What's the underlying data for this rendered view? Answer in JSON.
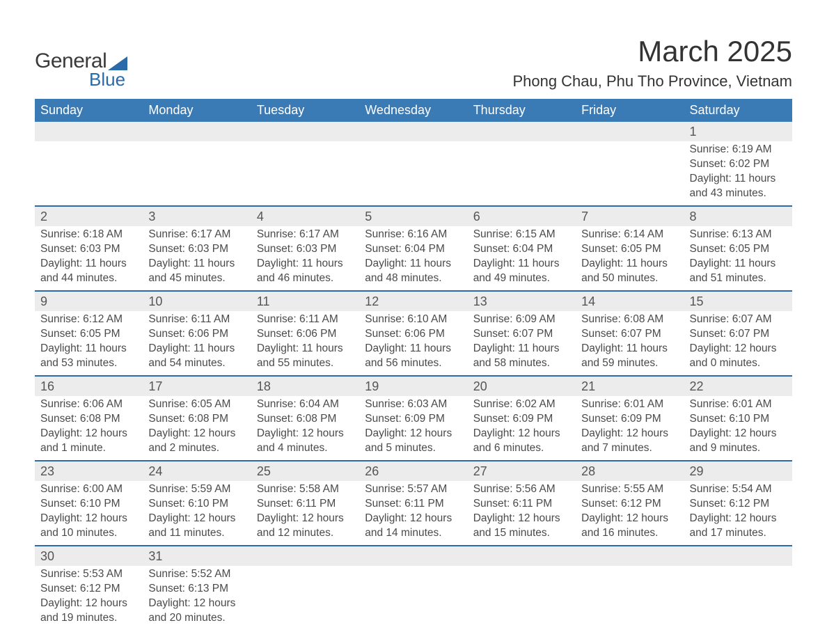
{
  "brand": {
    "general": "General",
    "blue": "Blue"
  },
  "title": "March 2025",
  "location": "Phong Chau, Phu Tho Province, Vietnam",
  "colors": {
    "header_bg": "#3a7ab5",
    "week_divider": "#2b6aa8",
    "daynum_bg": "#ececec",
    "text": "#4a4a4a",
    "title_text": "#333333",
    "logo_blue": "#2b6aa8"
  },
  "weekdays": [
    "Sunday",
    "Monday",
    "Tuesday",
    "Wednesday",
    "Thursday",
    "Friday",
    "Saturday"
  ],
  "weeks": [
    [
      null,
      null,
      null,
      null,
      null,
      null,
      {
        "d": "1",
        "sr": "Sunrise: 6:19 AM",
        "ss": "Sunset: 6:02 PM",
        "dl1": "Daylight: 11 hours",
        "dl2": "and 43 minutes."
      }
    ],
    [
      {
        "d": "2",
        "sr": "Sunrise: 6:18 AM",
        "ss": "Sunset: 6:03 PM",
        "dl1": "Daylight: 11 hours",
        "dl2": "and 44 minutes."
      },
      {
        "d": "3",
        "sr": "Sunrise: 6:17 AM",
        "ss": "Sunset: 6:03 PM",
        "dl1": "Daylight: 11 hours",
        "dl2": "and 45 minutes."
      },
      {
        "d": "4",
        "sr": "Sunrise: 6:17 AM",
        "ss": "Sunset: 6:03 PM",
        "dl1": "Daylight: 11 hours",
        "dl2": "and 46 minutes."
      },
      {
        "d": "5",
        "sr": "Sunrise: 6:16 AM",
        "ss": "Sunset: 6:04 PM",
        "dl1": "Daylight: 11 hours",
        "dl2": "and 48 minutes."
      },
      {
        "d": "6",
        "sr": "Sunrise: 6:15 AM",
        "ss": "Sunset: 6:04 PM",
        "dl1": "Daylight: 11 hours",
        "dl2": "and 49 minutes."
      },
      {
        "d": "7",
        "sr": "Sunrise: 6:14 AM",
        "ss": "Sunset: 6:05 PM",
        "dl1": "Daylight: 11 hours",
        "dl2": "and 50 minutes."
      },
      {
        "d": "8",
        "sr": "Sunrise: 6:13 AM",
        "ss": "Sunset: 6:05 PM",
        "dl1": "Daylight: 11 hours",
        "dl2": "and 51 minutes."
      }
    ],
    [
      {
        "d": "9",
        "sr": "Sunrise: 6:12 AM",
        "ss": "Sunset: 6:05 PM",
        "dl1": "Daylight: 11 hours",
        "dl2": "and 53 minutes."
      },
      {
        "d": "10",
        "sr": "Sunrise: 6:11 AM",
        "ss": "Sunset: 6:06 PM",
        "dl1": "Daylight: 11 hours",
        "dl2": "and 54 minutes."
      },
      {
        "d": "11",
        "sr": "Sunrise: 6:11 AM",
        "ss": "Sunset: 6:06 PM",
        "dl1": "Daylight: 11 hours",
        "dl2": "and 55 minutes."
      },
      {
        "d": "12",
        "sr": "Sunrise: 6:10 AM",
        "ss": "Sunset: 6:06 PM",
        "dl1": "Daylight: 11 hours",
        "dl2": "and 56 minutes."
      },
      {
        "d": "13",
        "sr": "Sunrise: 6:09 AM",
        "ss": "Sunset: 6:07 PM",
        "dl1": "Daylight: 11 hours",
        "dl2": "and 58 minutes."
      },
      {
        "d": "14",
        "sr": "Sunrise: 6:08 AM",
        "ss": "Sunset: 6:07 PM",
        "dl1": "Daylight: 11 hours",
        "dl2": "and 59 minutes."
      },
      {
        "d": "15",
        "sr": "Sunrise: 6:07 AM",
        "ss": "Sunset: 6:07 PM",
        "dl1": "Daylight: 12 hours",
        "dl2": "and 0 minutes."
      }
    ],
    [
      {
        "d": "16",
        "sr": "Sunrise: 6:06 AM",
        "ss": "Sunset: 6:08 PM",
        "dl1": "Daylight: 12 hours",
        "dl2": "and 1 minute."
      },
      {
        "d": "17",
        "sr": "Sunrise: 6:05 AM",
        "ss": "Sunset: 6:08 PM",
        "dl1": "Daylight: 12 hours",
        "dl2": "and 2 minutes."
      },
      {
        "d": "18",
        "sr": "Sunrise: 6:04 AM",
        "ss": "Sunset: 6:08 PM",
        "dl1": "Daylight: 12 hours",
        "dl2": "and 4 minutes."
      },
      {
        "d": "19",
        "sr": "Sunrise: 6:03 AM",
        "ss": "Sunset: 6:09 PM",
        "dl1": "Daylight: 12 hours",
        "dl2": "and 5 minutes."
      },
      {
        "d": "20",
        "sr": "Sunrise: 6:02 AM",
        "ss": "Sunset: 6:09 PM",
        "dl1": "Daylight: 12 hours",
        "dl2": "and 6 minutes."
      },
      {
        "d": "21",
        "sr": "Sunrise: 6:01 AM",
        "ss": "Sunset: 6:09 PM",
        "dl1": "Daylight: 12 hours",
        "dl2": "and 7 minutes."
      },
      {
        "d": "22",
        "sr": "Sunrise: 6:01 AM",
        "ss": "Sunset: 6:10 PM",
        "dl1": "Daylight: 12 hours",
        "dl2": "and 9 minutes."
      }
    ],
    [
      {
        "d": "23",
        "sr": "Sunrise: 6:00 AM",
        "ss": "Sunset: 6:10 PM",
        "dl1": "Daylight: 12 hours",
        "dl2": "and 10 minutes."
      },
      {
        "d": "24",
        "sr": "Sunrise: 5:59 AM",
        "ss": "Sunset: 6:10 PM",
        "dl1": "Daylight: 12 hours",
        "dl2": "and 11 minutes."
      },
      {
        "d": "25",
        "sr": "Sunrise: 5:58 AM",
        "ss": "Sunset: 6:11 PM",
        "dl1": "Daylight: 12 hours",
        "dl2": "and 12 minutes."
      },
      {
        "d": "26",
        "sr": "Sunrise: 5:57 AM",
        "ss": "Sunset: 6:11 PM",
        "dl1": "Daylight: 12 hours",
        "dl2": "and 14 minutes."
      },
      {
        "d": "27",
        "sr": "Sunrise: 5:56 AM",
        "ss": "Sunset: 6:11 PM",
        "dl1": "Daylight: 12 hours",
        "dl2": "and 15 minutes."
      },
      {
        "d": "28",
        "sr": "Sunrise: 5:55 AM",
        "ss": "Sunset: 6:12 PM",
        "dl1": "Daylight: 12 hours",
        "dl2": "and 16 minutes."
      },
      {
        "d": "29",
        "sr": "Sunrise: 5:54 AM",
        "ss": "Sunset: 6:12 PM",
        "dl1": "Daylight: 12 hours",
        "dl2": "and 17 minutes."
      }
    ],
    [
      {
        "d": "30",
        "sr": "Sunrise: 5:53 AM",
        "ss": "Sunset: 6:12 PM",
        "dl1": "Daylight: 12 hours",
        "dl2": "and 19 minutes."
      },
      {
        "d": "31",
        "sr": "Sunrise: 5:52 AM",
        "ss": "Sunset: 6:13 PM",
        "dl1": "Daylight: 12 hours",
        "dl2": "and 20 minutes."
      },
      null,
      null,
      null,
      null,
      null
    ]
  ]
}
